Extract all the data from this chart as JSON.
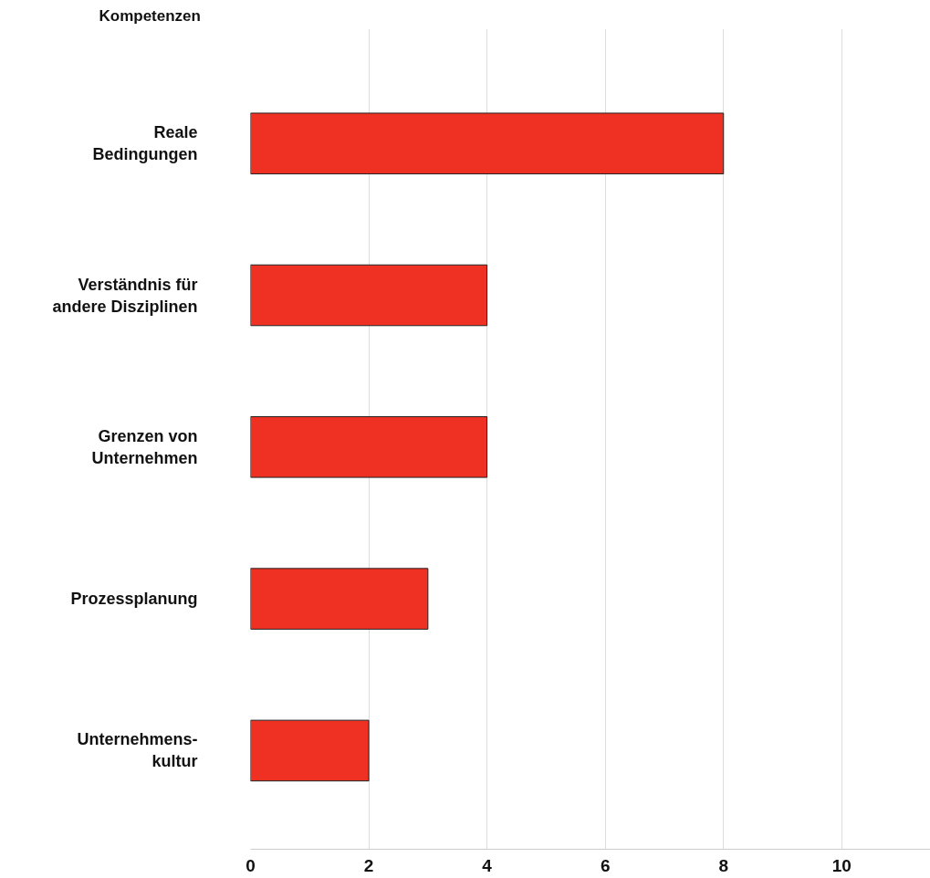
{
  "chart_data": {
    "type": "bar",
    "orientation": "horizontal",
    "ylabel": "Kompetenzen",
    "categories": [
      "Reale\nBedingungen",
      "Verständnis für\nandere Disziplinen",
      "Grenzen von\nUnternehmen",
      "Prozessplanung",
      "Unternehmens-\nkultur"
    ],
    "values": [
      8,
      4,
      4,
      3,
      2
    ],
    "color": "#ef3124",
    "xlim": [
      0,
      11.5
    ],
    "xticks": [
      0,
      2,
      4,
      6,
      8,
      10
    ],
    "grid": "x"
  }
}
